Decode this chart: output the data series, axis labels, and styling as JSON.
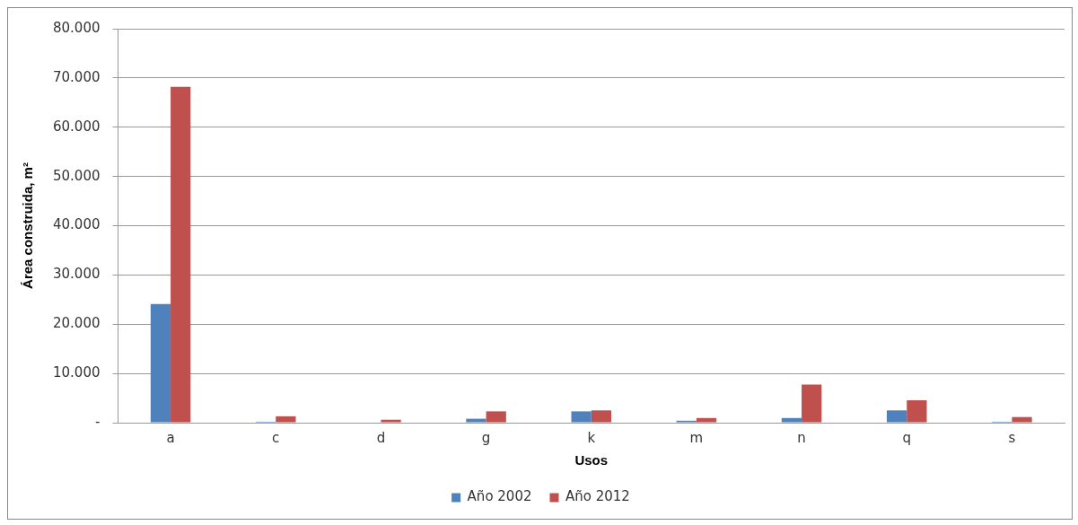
{
  "chart_data": {
    "type": "bar",
    "xlabel": "Usos",
    "ylabel": "Área construida, m²",
    "categories": [
      "a",
      "c",
      "d",
      "g",
      "k",
      "m",
      "n",
      "q",
      "s"
    ],
    "series": [
      {
        "name": "Año 2002",
        "color": "#4f81bd",
        "values": [
          24100,
          200,
          0,
          800,
          2300,
          400,
          950,
          2500,
          200
        ]
      },
      {
        "name": "Año 2012",
        "color": "#c0504d",
        "values": [
          68200,
          1300,
          600,
          2300,
          2500,
          950,
          7750,
          4550,
          1150
        ]
      }
    ],
    "ylim": [
      0,
      80000
    ],
    "yticks": [
      {
        "value": 0,
        "label": "-"
      },
      {
        "value": 10000,
        "label": "10.000"
      },
      {
        "value": 20000,
        "label": "20.000"
      },
      {
        "value": 30000,
        "label": "30.000"
      },
      {
        "value": 40000,
        "label": "40.000"
      },
      {
        "value": 50000,
        "label": "50.000"
      },
      {
        "value": 60000,
        "label": "60.000"
      },
      {
        "value": 70000,
        "label": "70.000"
      },
      {
        "value": 80000,
        "label": "80.000"
      }
    ],
    "grid": "y",
    "legend": "bottom"
  }
}
